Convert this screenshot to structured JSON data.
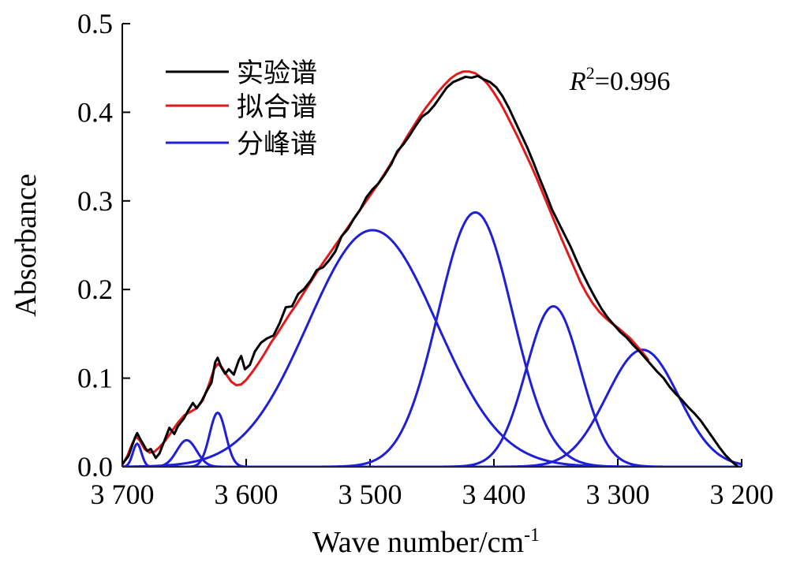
{
  "chart_data": {
    "type": "line",
    "xlabel": "Wave number/cm",
    "xlabel_sup": "-1",
    "ylabel": "Absorbance",
    "xlim": [
      3700,
      3200
    ],
    "ylim": [
      0,
      0.5
    ],
    "x_ticks": [
      3700,
      3600,
      3500,
      3400,
      3300,
      3200
    ],
    "x_tick_labels": [
      "3 700",
      "3 600",
      "3 500",
      "3 400",
      "3 300",
      "3 200"
    ],
    "y_ticks": [
      0.0,
      0.1,
      0.2,
      0.3,
      0.4,
      0.5
    ],
    "y_tick_labels": [
      "0.0",
      "0.1",
      "0.2",
      "0.3",
      "0.4",
      "0.5"
    ],
    "annotation": {
      "prefix": "R",
      "sup": "2",
      "value": "=0.996"
    },
    "legend": [
      {
        "label": "实验谱",
        "color": "#000000"
      },
      {
        "label": "拟合谱",
        "color": "#e31a1c"
      },
      {
        "label": "分峰谱",
        "color": "#1f1fd6"
      }
    ],
    "series": [
      {
        "name": "实验谱",
        "color": "#000000",
        "points": [
          [
            3700,
            0.003
          ],
          [
            3695,
            0.012
          ],
          [
            3690,
            0.032
          ],
          [
            3688,
            0.038
          ],
          [
            3685,
            0.03
          ],
          [
            3680,
            0.018
          ],
          [
            3677,
            0.02
          ],
          [
            3673,
            0.01
          ],
          [
            3670,
            0.015
          ],
          [
            3665,
            0.033
          ],
          [
            3662,
            0.044
          ],
          [
            3658,
            0.037
          ],
          [
            3655,
            0.046
          ],
          [
            3650,
            0.055
          ],
          [
            3647,
            0.063
          ],
          [
            3643,
            0.072
          ],
          [
            3640,
            0.066
          ],
          [
            3636,
            0.074
          ],
          [
            3632,
            0.085
          ],
          [
            3628,
            0.095
          ],
          [
            3625,
            0.118
          ],
          [
            3623,
            0.123
          ],
          [
            3620,
            0.112
          ],
          [
            3617,
            0.105
          ],
          [
            3614,
            0.11
          ],
          [
            3610,
            0.104
          ],
          [
            3606,
            0.12
          ],
          [
            3604,
            0.125
          ],
          [
            3601,
            0.11
          ],
          [
            3597,
            0.115
          ],
          [
            3593,
            0.13
          ],
          [
            3588,
            0.14
          ],
          [
            3583,
            0.145
          ],
          [
            3578,
            0.148
          ],
          [
            3573,
            0.162
          ],
          [
            3568,
            0.18
          ],
          [
            3563,
            0.181
          ],
          [
            3558,
            0.195
          ],
          [
            3553,
            0.201
          ],
          [
            3548,
            0.21
          ],
          [
            3543,
            0.222
          ],
          [
            3538,
            0.225
          ],
          [
            3533,
            0.233
          ],
          [
            3528,
            0.243
          ],
          [
            3523,
            0.26
          ],
          [
            3518,
            0.268
          ],
          [
            3513,
            0.28
          ],
          [
            3508,
            0.29
          ],
          [
            3503,
            0.304
          ],
          [
            3498,
            0.313
          ],
          [
            3493,
            0.32
          ],
          [
            3488,
            0.33
          ],
          [
            3483,
            0.341
          ],
          [
            3478,
            0.356
          ],
          [
            3473,
            0.364
          ],
          [
            3468,
            0.374
          ],
          [
            3463,
            0.385
          ],
          [
            3458,
            0.395
          ],
          [
            3453,
            0.4
          ],
          [
            3448,
            0.408
          ],
          [
            3443,
            0.418
          ],
          [
            3438,
            0.428
          ],
          [
            3433,
            0.434
          ],
          [
            3428,
            0.437
          ],
          [
            3423,
            0.44
          ],
          [
            3418,
            0.439
          ],
          [
            3413,
            0.441
          ],
          [
            3408,
            0.437
          ],
          [
            3403,
            0.434
          ],
          [
            3398,
            0.428
          ],
          [
            3393,
            0.418
          ],
          [
            3388,
            0.405
          ],
          [
            3383,
            0.39
          ],
          [
            3378,
            0.375
          ],
          [
            3373,
            0.36
          ],
          [
            3368,
            0.343
          ],
          [
            3363,
            0.325
          ],
          [
            3358,
            0.308
          ],
          [
            3353,
            0.29
          ],
          [
            3348,
            0.276
          ],
          [
            3343,
            0.262
          ],
          [
            3338,
            0.248
          ],
          [
            3333,
            0.232
          ],
          [
            3328,
            0.217
          ],
          [
            3323,
            0.203
          ],
          [
            3318,
            0.19
          ],
          [
            3313,
            0.178
          ],
          [
            3308,
            0.168
          ],
          [
            3303,
            0.16
          ],
          [
            3298,
            0.152
          ],
          [
            3293,
            0.146
          ],
          [
            3288,
            0.138
          ],
          [
            3283,
            0.131
          ],
          [
            3278,
            0.123
          ],
          [
            3273,
            0.115
          ],
          [
            3268,
            0.107
          ],
          [
            3263,
            0.1
          ],
          [
            3258,
            0.09
          ],
          [
            3253,
            0.082
          ],
          [
            3248,
            0.075
          ],
          [
            3243,
            0.067
          ],
          [
            3238,
            0.06
          ],
          [
            3233,
            0.052
          ],
          [
            3228,
            0.042
          ],
          [
            3223,
            0.032
          ],
          [
            3218,
            0.022
          ],
          [
            3213,
            0.013
          ],
          [
            3208,
            0.006
          ],
          [
            3203,
            0.0
          ]
        ]
      },
      {
        "name": "拟合谱",
        "color": "#e31a1c",
        "points": [
          [
            3700,
            0.002
          ],
          [
            3696,
            0.012
          ],
          [
            3692,
            0.026
          ],
          [
            3689,
            0.034
          ],
          [
            3686,
            0.03
          ],
          [
            3682,
            0.02
          ],
          [
            3678,
            0.016
          ],
          [
            3674,
            0.017
          ],
          [
            3670,
            0.022
          ],
          [
            3665,
            0.03
          ],
          [
            3660,
            0.04
          ],
          [
            3655,
            0.05
          ],
          [
            3650,
            0.058
          ],
          [
            3645,
            0.062
          ],
          [
            3640,
            0.066
          ],
          [
            3635,
            0.075
          ],
          [
            3630,
            0.093
          ],
          [
            3626,
            0.11
          ],
          [
            3623,
            0.116
          ],
          [
            3620,
            0.113
          ],
          [
            3616,
            0.104
          ],
          [
            3612,
            0.096
          ],
          [
            3608,
            0.092
          ],
          [
            3604,
            0.093
          ],
          [
            3600,
            0.098
          ],
          [
            3595,
            0.107
          ],
          [
            3590,
            0.117
          ],
          [
            3585,
            0.128
          ],
          [
            3580,
            0.14
          ],
          [
            3575,
            0.15
          ],
          [
            3570,
            0.161
          ],
          [
            3565,
            0.172
          ],
          [
            3560,
            0.182
          ],
          [
            3555,
            0.193
          ],
          [
            3550,
            0.204
          ],
          [
            3545,
            0.215
          ],
          [
            3540,
            0.226
          ],
          [
            3535,
            0.236
          ],
          [
            3530,
            0.246
          ],
          [
            3525,
            0.256
          ],
          [
            3520,
            0.266
          ],
          [
            3515,
            0.276
          ],
          [
            3510,
            0.286
          ],
          [
            3505,
            0.296
          ],
          [
            3500,
            0.306
          ],
          [
            3495,
            0.316
          ],
          [
            3490,
            0.327
          ],
          [
            3485,
            0.338
          ],
          [
            3480,
            0.35
          ],
          [
            3475,
            0.361
          ],
          [
            3470,
            0.373
          ],
          [
            3465,
            0.384
          ],
          [
            3460,
            0.395
          ],
          [
            3455,
            0.405
          ],
          [
            3450,
            0.414
          ],
          [
            3445,
            0.423
          ],
          [
            3440,
            0.431
          ],
          [
            3435,
            0.438
          ],
          [
            3430,
            0.443
          ],
          [
            3425,
            0.446
          ],
          [
            3420,
            0.446
          ],
          [
            3415,
            0.444
          ],
          [
            3410,
            0.439
          ],
          [
            3405,
            0.432
          ],
          [
            3400,
            0.422
          ],
          [
            3395,
            0.411
          ],
          [
            3390,
            0.398
          ],
          [
            3385,
            0.384
          ],
          [
            3380,
            0.37
          ],
          [
            3375,
            0.355
          ],
          [
            3370,
            0.34
          ],
          [
            3365,
            0.324
          ],
          [
            3360,
            0.307
          ],
          [
            3355,
            0.29
          ],
          [
            3350,
            0.273
          ],
          [
            3345,
            0.256
          ],
          [
            3340,
            0.24
          ],
          [
            3335,
            0.224
          ],
          [
            3330,
            0.208
          ],
          [
            3325,
            0.195
          ],
          [
            3320,
            0.184
          ],
          [
            3315,
            0.175
          ],
          [
            3310,
            0.168
          ],
          [
            3305,
            0.162
          ],
          [
            3300,
            0.157
          ],
          [
            3295,
            0.151
          ],
          [
            3290,
            0.145
          ],
          [
            3285,
            0.137
          ],
          [
            3280,
            0.129
          ],
          [
            3275,
            0.12
          ]
        ]
      },
      {
        "name": "分峰谱",
        "color": "#1f1fd6",
        "peaks": [
          {
            "center": 3688,
            "height": 0.026,
            "width": 3.5
          },
          {
            "center": 3648,
            "height": 0.03,
            "width": 8
          },
          {
            "center": 3623,
            "height": 0.061,
            "width": 6.5
          },
          {
            "center": 3498,
            "height": 0.267,
            "width": 52
          },
          {
            "center": 3415,
            "height": 0.287,
            "width": 30
          },
          {
            "center": 3352,
            "height": 0.181,
            "width": 22
          },
          {
            "center": 3280,
            "height": 0.132,
            "width": 29
          }
        ],
        "x_range": [
          3700,
          3200
        ]
      }
    ]
  }
}
